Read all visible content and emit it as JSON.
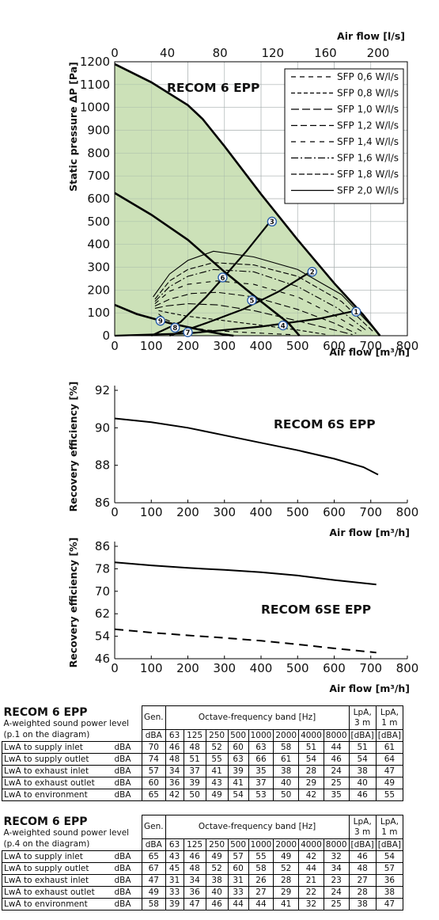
{
  "chart_data": [
    {
      "type": "line",
      "title": "RECOM 6 EPP",
      "xlabel": "Air flow [m³/h]",
      "ylabel": "Static pressure ΔP [Pa]",
      "x2label": "Air flow [l/s]",
      "xlim": [
        0,
        800
      ],
      "ylim": [
        0,
        1200
      ],
      "xticks": [
        "0",
        "100",
        "200",
        "300",
        "400",
        "500",
        "600",
        "700",
        "800"
      ],
      "yticks": [
        "0",
        "100",
        "200",
        "300",
        "400",
        "500",
        "600",
        "700",
        "800",
        "900",
        "1000",
        "1100",
        "1200"
      ],
      "x2ticks": [
        "0",
        "40",
        "80",
        "120",
        "160",
        "200"
      ],
      "x2values": [
        0,
        40,
        80,
        120,
        160,
        200
      ],
      "x2factor": 3.6,
      "grid": true,
      "fill_color": "#c6deb0",
      "envelope": [
        [
          0,
          1190
        ],
        [
          100,
          1110
        ],
        [
          200,
          1010
        ],
        [
          240,
          950
        ],
        [
          300,
          830
        ],
        [
          400,
          620
        ],
        [
          500,
          420
        ],
        [
          600,
          230
        ],
        [
          680,
          90
        ],
        [
          725,
          0
        ]
      ],
      "curves": [
        {
          "name": "fan-curve-mid",
          "points": [
            [
              0,
              625
            ],
            [
              100,
              530
            ],
            [
              200,
              420
            ],
            [
              300,
              280
            ],
            [
              400,
              150
            ],
            [
              475,
              55
            ],
            [
              505,
              0
            ]
          ]
        },
        {
          "name": "fan-curve-low",
          "points": [
            [
              0,
              135
            ],
            [
              60,
              95
            ],
            [
              150,
              55
            ],
            [
              250,
              20
            ],
            [
              300,
              5
            ],
            [
              325,
              0
            ]
          ]
        }
      ],
      "system_lines": [
        {
          "name": "duct-line-1",
          "points": [
            [
              0,
              0
            ],
            [
              200,
              10
            ],
            [
              400,
              40
            ],
            [
              560,
              75
            ],
            [
              660,
              110
            ]
          ]
        },
        {
          "name": "duct-line-2",
          "points": [
            [
              150,
              0
            ],
            [
              250,
              55
            ],
            [
              350,
              115
            ],
            [
              450,
              195
            ],
            [
              540,
              285
            ]
          ]
        },
        {
          "name": "duct-line-3",
          "points": [
            [
              100,
              0
            ],
            [
              180,
              60
            ],
            [
              250,
              170
            ],
            [
              300,
              260
            ],
            [
              360,
              370
            ],
            [
              425,
              500
            ]
          ]
        }
      ],
      "sfp_series": [
        {
          "name": "SFP 0,6 W/l/s",
          "dash": "6,5",
          "points": [
            [
              120,
              95
            ],
            [
              140,
              70
            ],
            [
              180,
              45
            ],
            [
              250,
              25
            ],
            [
              350,
              15
            ],
            [
              480,
              5
            ]
          ]
        },
        {
          "name": "SFP 0,8 W/l/s",
          "dash": "5,3",
          "points": [
            [
              120,
              110
            ],
            [
              150,
              100
            ],
            [
              200,
              85
            ],
            [
              280,
              70
            ],
            [
              380,
              50
            ],
            [
              500,
              25
            ],
            [
              580,
              5
            ]
          ]
        },
        {
          "name": "SFP 1,0 W/l/s",
          "dash": "10,4",
          "points": [
            [
              110,
              120
            ],
            [
              140,
              130
            ],
            [
              200,
              140
            ],
            [
              280,
              135
            ],
            [
              380,
              110
            ],
            [
              500,
              65
            ],
            [
              600,
              25
            ],
            [
              650,
              5
            ]
          ]
        },
        {
          "name": "SFP 1,2 W/l/s",
          "dash": "8,4",
          "points": [
            [
              110,
              130
            ],
            [
              150,
              160
            ],
            [
              210,
              185
            ],
            [
              280,
              190
            ],
            [
              380,
              170
            ],
            [
              500,
              115
            ],
            [
              600,
              55
            ],
            [
              660,
              10
            ]
          ]
        },
        {
          "name": "SFP 1,4 W/l/s",
          "dash": "6,6",
          "points": [
            [
              110,
              140
            ],
            [
              150,
              195
            ],
            [
              200,
              225
            ],
            [
              280,
              240
            ],
            [
              380,
              225
            ],
            [
              500,
              170
            ],
            [
              600,
              90
            ],
            [
              680,
              15
            ]
          ]
        },
        {
          "name": "SFP 1,6 W/l/s",
          "dash": "9,3,2,3",
          "points": [
            [
              110,
              150
            ],
            [
              150,
              215
            ],
            [
              200,
              260
            ],
            [
              270,
              290
            ],
            [
              380,
              280
            ],
            [
              500,
              215
            ],
            [
              610,
              120
            ],
            [
              690,
              20
            ]
          ]
        },
        {
          "name": "SFP 1,8 W/l/s",
          "dash": "7,3",
          "points": [
            [
              110,
              160
            ],
            [
              150,
              240
            ],
            [
              200,
              290
            ],
            [
              270,
              320
            ],
            [
              380,
              310
            ],
            [
              500,
              260
            ],
            [
              620,
              150
            ],
            [
              705,
              20
            ]
          ]
        },
        {
          "name": "SFP 2,0 W/l/s",
          "dash": "",
          "points": [
            [
              105,
              170
            ],
            [
              150,
              270
            ],
            [
              200,
              330
            ],
            [
              270,
              370
            ],
            [
              380,
              345
            ],
            [
              500,
              290
            ],
            [
              620,
              180
            ],
            [
              715,
              20
            ]
          ]
        }
      ],
      "markers": [
        {
          "label": "1",
          "x": 660,
          "y": 105
        },
        {
          "label": "2",
          "x": 540,
          "y": 280
        },
        {
          "label": "3",
          "x": 430,
          "y": 500
        },
        {
          "label": "4",
          "x": 460,
          "y": 45
        },
        {
          "label": "5",
          "x": 375,
          "y": 155
        },
        {
          "label": "6",
          "x": 295,
          "y": 255
        },
        {
          "label": "7",
          "x": 200,
          "y": 15
        },
        {
          "label": "8",
          "x": 165,
          "y": 35
        },
        {
          "label": "9",
          "x": 125,
          "y": 65
        }
      ]
    },
    {
      "type": "line",
      "title": "RECOM 6S EPP",
      "xlabel": "Air flow [m³/h]",
      "ylabel": "Recovery efficiency [%]",
      "xlim": [
        0,
        800
      ],
      "ylim": [
        86,
        92
      ],
      "xticks": [
        "0",
        "100",
        "200",
        "300",
        "400",
        "500",
        "600",
        "700",
        "800"
      ],
      "yticks": [
        "86",
        "88",
        "90",
        "92"
      ],
      "yvalues": [
        86,
        88,
        90,
        92
      ],
      "series": [
        {
          "values": [
            [
              0,
              90.5
            ],
            [
              100,
              90.3
            ],
            [
              200,
              90.0
            ],
            [
              300,
              89.6
            ],
            [
              400,
              89.2
            ],
            [
              500,
              88.8
            ],
            [
              600,
              88.35
            ],
            [
              680,
              87.9
            ],
            [
              720,
              87.5
            ]
          ]
        }
      ]
    },
    {
      "type": "line",
      "title": "RECOM 6SE EPP",
      "xlabel": "Air flow [m³/h]",
      "ylabel": "Recovery efficiency [%]",
      "xlim": [
        0,
        800
      ],
      "ylim": [
        46,
        86
      ],
      "xticks": [
        "0",
        "100",
        "200",
        "300",
        "400",
        "500",
        "600",
        "700",
        "800"
      ],
      "yticks": [
        "46",
        "54",
        "62",
        "70",
        "78",
        "86"
      ],
      "yvalues": [
        46,
        54,
        62,
        70,
        78,
        86
      ],
      "series": [
        {
          "values": [
            [
              0,
              80.3
            ],
            [
              100,
              79.2
            ],
            [
              200,
              78.3
            ],
            [
              300,
              77.6
            ],
            [
              400,
              76.8
            ],
            [
              500,
              75.6
            ],
            [
              600,
              74.0
            ],
            [
              715,
              72.4
            ]
          ]
        },
        {
          "values": [
            [
              0,
              56.5
            ],
            [
              100,
              55.3
            ],
            [
              200,
              54.3
            ],
            [
              300,
              53.4
            ],
            [
              400,
              52.4
            ],
            [
              500,
              51.1
            ],
            [
              600,
              49.7
            ],
            [
              715,
              48.2
            ]
          ],
          "dashed": true
        }
      ]
    }
  ],
  "tables": [
    {
      "title": "RECOM 6 EPP",
      "subtitle": "A-weighted sound power level",
      "point": "(p.1 on the diagram)",
      "gen": "Gen.",
      "band": "Octave-frequency band [Hz]",
      "lpa3_a": "LpA,",
      "lpa3_b": "3 m",
      "lpa1_a": "LpA,",
      "lpa1_b": "1 m",
      "cols": [
        "dBA",
        "63",
        "125",
        "250",
        "500",
        "1000",
        "2000",
        "4000",
        "8000",
        "[dBA]",
        "[dBA]"
      ],
      "rows": [
        {
          "label": "LwA to supply inlet",
          "unit": "dBA",
          "values": [
            "70",
            "46",
            "48",
            "52",
            "60",
            "63",
            "58",
            "51",
            "44",
            "51",
            "61"
          ]
        },
        {
          "label": "LwA to supply outlet",
          "unit": "dBA",
          "values": [
            "74",
            "48",
            "51",
            "55",
            "63",
            "66",
            "61",
            "54",
            "46",
            "54",
            "64"
          ]
        },
        {
          "label": "LwA to exhaust inlet",
          "unit": "dBA",
          "values": [
            "57",
            "34",
            "37",
            "41",
            "39",
            "35",
            "38",
            "28",
            "24",
            "38",
            "47"
          ]
        },
        {
          "label": "LwA to exhaust outlet",
          "unit": "dBA",
          "values": [
            "60",
            "36",
            "39",
            "43",
            "41",
            "37",
            "40",
            "29",
            "25",
            "40",
            "49"
          ]
        },
        {
          "label": "LwA to environment",
          "unit": "dBA",
          "values": [
            "65",
            "42",
            "50",
            "49",
            "54",
            "53",
            "50",
            "42",
            "35",
            "46",
            "55"
          ]
        }
      ]
    },
    {
      "title": "RECOM 6 EPP",
      "subtitle": "A-weighted sound power level",
      "point": "(p.4 on the diagram)",
      "gen": "Gen.",
      "band": "Octave-frequency band [Hz]",
      "lpa3_a": "LpA,",
      "lpa3_b": "3 m",
      "lpa1_a": "LpA,",
      "lpa1_b": "1 m",
      "cols": [
        "dBA",
        "63",
        "125",
        "250",
        "500",
        "1000",
        "2000",
        "4000",
        "8000",
        "[dBA]",
        "[dBA]"
      ],
      "rows": [
        {
          "label": "LwA to supply inlet",
          "unit": "dBA",
          "values": [
            "65",
            "43",
            "46",
            "49",
            "57",
            "55",
            "49",
            "42",
            "32",
            "46",
            "54"
          ]
        },
        {
          "label": "LwA to supply outlet",
          "unit": "dBA",
          "values": [
            "67",
            "45",
            "48",
            "52",
            "60",
            "58",
            "52",
            "44",
            "34",
            "48",
            "57"
          ]
        },
        {
          "label": "LwA to exhaust inlet",
          "unit": "dBA",
          "values": [
            "47",
            "31",
            "34",
            "38",
            "31",
            "26",
            "28",
            "21",
            "23",
            "27",
            "36"
          ]
        },
        {
          "label": "LwA to exhaust outlet",
          "unit": "dBA",
          "values": [
            "49",
            "33",
            "36",
            "40",
            "33",
            "27",
            "29",
            "22",
            "24",
            "28",
            "38"
          ]
        },
        {
          "label": "LwA to environment",
          "unit": "dBA",
          "values": [
            "58",
            "39",
            "47",
            "46",
            "44",
            "44",
            "41",
            "32",
            "25",
            "38",
            "47"
          ]
        }
      ]
    }
  ]
}
